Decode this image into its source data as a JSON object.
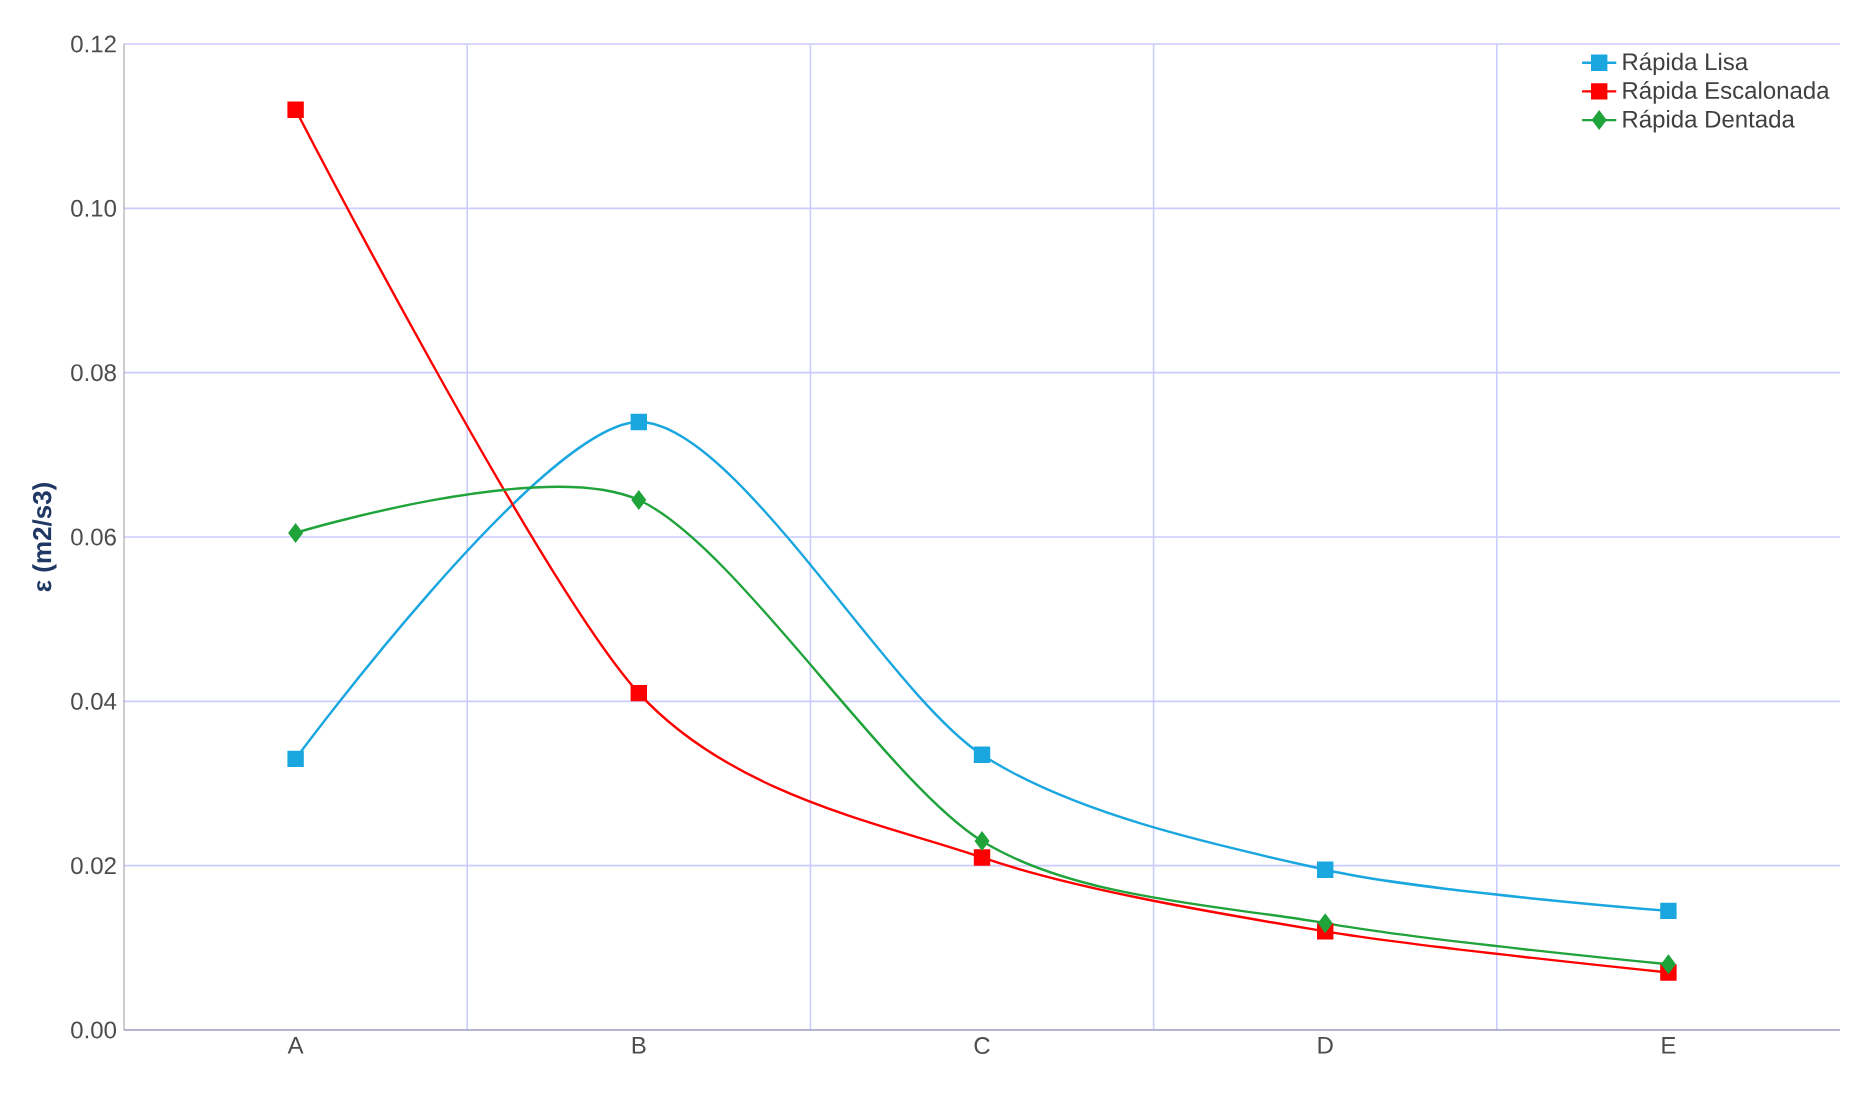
{
  "chart_data": {
    "type": "line",
    "ylabel": "ε (m2/s3)",
    "categories": [
      "A",
      "B",
      "C",
      "D",
      "E"
    ],
    "series": [
      {
        "name": "Rápida Lisa",
        "color": "#1aa7e0",
        "marker": "square",
        "values": [
          0.033,
          0.074,
          0.0335,
          0.0195,
          0.0145
        ]
      },
      {
        "name": "Rápida Escalonada",
        "color": "#ff0000",
        "marker": "square",
        "values": [
          0.112,
          0.041,
          0.021,
          0.012,
          0.007
        ]
      },
      {
        "name": "Rápida Dentada",
        "color": "#1fa33a",
        "marker": "diamond",
        "values": [
          0.0605,
          0.0645,
          0.023,
          0.013,
          0.008
        ]
      }
    ],
    "ylim": [
      0,
      0.12
    ],
    "yticks": [
      {
        "value": 0,
        "label": "0.00"
      },
      {
        "value": 0.02,
        "label": "0.02"
      },
      {
        "value": 0.04,
        "label": "0.04"
      },
      {
        "value": 0.06,
        "label": "0.06"
      },
      {
        "value": 0.08,
        "label": "0.08"
      },
      {
        "value": 0.1,
        "label": "0.10"
      },
      {
        "value": 0.12,
        "label": "0.12"
      }
    ],
    "grid": true,
    "legend": "top right"
  }
}
